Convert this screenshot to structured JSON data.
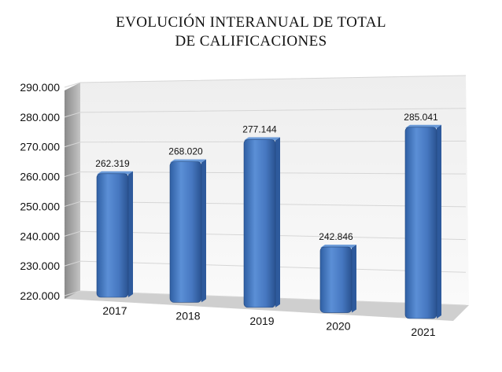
{
  "chart_data": {
    "type": "bar",
    "title": [
      "EVOLUCIÓN INTERANUAL DE TOTAL",
      "DE CALIFICACIONES"
    ],
    "categories": [
      "2017",
      "2018",
      "2019",
      "2020",
      "2021"
    ],
    "values": [
      262319,
      268020,
      277144,
      242846,
      285041
    ],
    "data_labels": [
      "262.319",
      "268.020",
      "277.144",
      "242.846",
      "285.041"
    ],
    "y_ticks": [
      "220.000",
      "230.000",
      "240.000",
      "250.000",
      "260.000",
      "270.000",
      "280.000",
      "290.000"
    ],
    "ylim": [
      220000,
      290000
    ],
    "xlabel": "",
    "ylabel": "",
    "grid": true,
    "legend": false,
    "three_d": true,
    "colors": {
      "bar": "#4a7cc4",
      "bar_dark": "#2e5a9c",
      "bar_top": "#6a9ad8",
      "wall": "#f4f4f4",
      "side_wall": "#a8a8a8",
      "floor": "#d0d0d0",
      "grid": "#d6d6d6"
    }
  }
}
